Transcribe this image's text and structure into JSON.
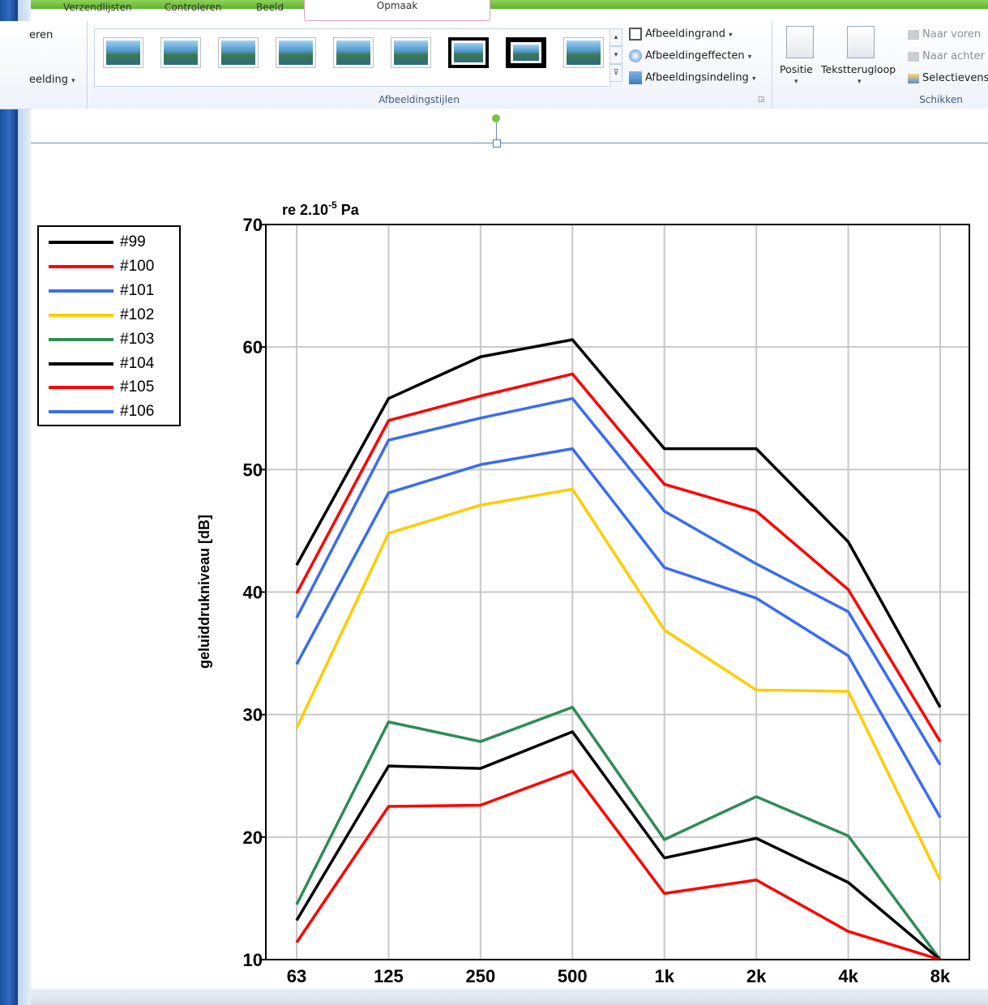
{
  "ribbon": {
    "tabs": [
      "Verzendlijsten",
      "Controleren",
      "Beeld",
      "Opmaak"
    ],
    "left_partial_1": "eren",
    "left_partial_2": "eelding",
    "picture_styles_group": "Afbeeldingstijlen",
    "picture_border": "Afbeeldingrand",
    "picture_effects": "Afbeeldingeffecten",
    "picture_layout": "Afbeeldingsindeling",
    "position": "Positie",
    "text_wrap": "Tekstterugloop",
    "bring_forward": "Naar voren",
    "send_backward": "Naar achter",
    "selection_pane": "Selectievens",
    "arrange_group": "Schikken",
    "style_count": 9,
    "selected_style": 7
  },
  "legend": {
    "items": [
      {
        "label": "#99",
        "color": "#000000"
      },
      {
        "label": "#100",
        "color": "#ff0000"
      },
      {
        "label": "#101",
        "color": "#3a6cf0"
      },
      {
        "label": "#102",
        "color": "#ffcc00"
      },
      {
        "label": "#103",
        "color": "#2e8b57"
      },
      {
        "label": "#104",
        "color": "#000000"
      },
      {
        "label": "#105",
        "color": "#ff0000"
      },
      {
        "label": "#106",
        "color": "#3a6cf0"
      }
    ]
  },
  "chart_data": {
    "type": "line",
    "title": "re 2.10",
    "title_exp": "-5",
    "title_unit": "Pa",
    "xlabel": "",
    "ylabel": "geluiddrukniveau [dB]",
    "categories": [
      "63",
      "125",
      "250",
      "500",
      "1k",
      "2k",
      "4k",
      "8k"
    ],
    "ylim": [
      10,
      70
    ],
    "yticks": [
      10,
      20,
      30,
      40,
      50,
      60,
      70
    ],
    "grid": true,
    "series": [
      {
        "color": "#000000",
        "values": [
          42.2,
          55.8,
          59.2,
          60.6,
          51.7,
          51.7,
          44.1,
          30.6
        ]
      },
      {
        "color": "#ff0000",
        "values": [
          39.9,
          54.0,
          56.0,
          57.8,
          48.8,
          46.6,
          40.2,
          27.8
        ]
      },
      {
        "color": "#3a6cf0",
        "values": [
          37.9,
          52.4,
          54.2,
          55.8,
          46.6,
          42.3,
          38.4,
          25.9
        ]
      },
      {
        "color": "#3a6cf0",
        "values": [
          34.1,
          48.1,
          50.4,
          51.7,
          42.0,
          39.5,
          34.8,
          21.6
        ]
      },
      {
        "color": "#ffcc00",
        "values": [
          28.9,
          44.8,
          47.1,
          48.4,
          36.9,
          32.0,
          31.9,
          16.5
        ]
      },
      {
        "color": "#2e8b57",
        "values": [
          14.5,
          29.4,
          27.8,
          30.6,
          19.8,
          23.3,
          20.1,
          10.0
        ]
      },
      {
        "color": "#000000",
        "values": [
          13.2,
          25.8,
          25.6,
          28.6,
          18.3,
          19.9,
          16.3,
          10.0
        ]
      },
      {
        "color": "#ff0000",
        "values": [
          11.4,
          22.5,
          22.6,
          25.4,
          15.4,
          16.5,
          12.3,
          10.0
        ]
      }
    ]
  }
}
